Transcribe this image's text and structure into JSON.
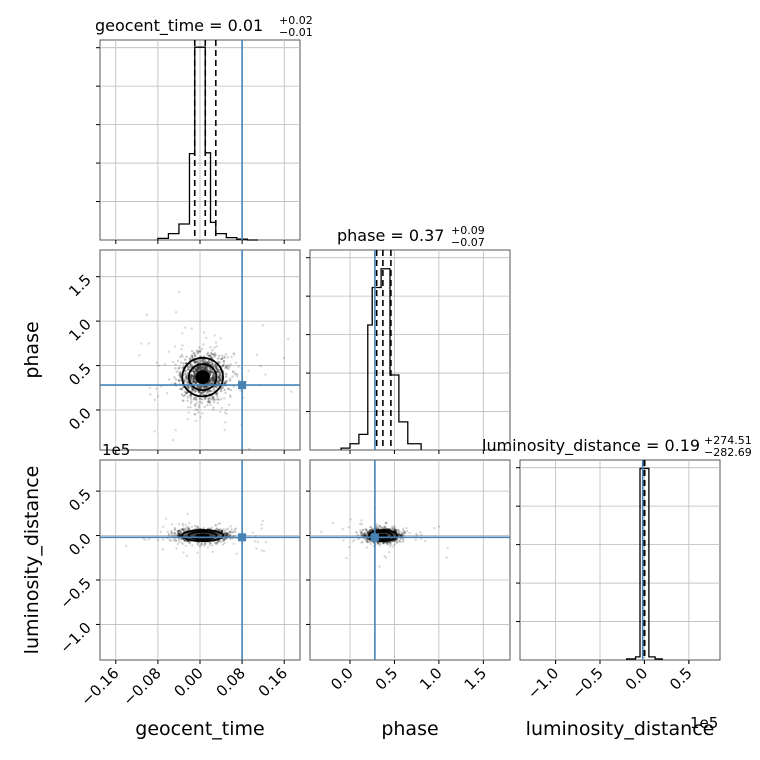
{
  "chart_data": {
    "type": "corner",
    "truths": {
      "geocent_time": 0.08,
      "phase": 0.28,
      "luminosity_distance": -0.02
    },
    "marker_color": "#4682b4",
    "scale_notes": {
      "distance_offset": "1e5"
    },
    "axes": [
      {
        "name": "geocent_time",
        "label": "geocent_time",
        "range": [
          -0.19,
          0.19
        ],
        "ticks": [
          -0.16,
          -0.08,
          0.0,
          0.08,
          0.16
        ],
        "tick_labels": [
          "−0.16",
          "−0.08",
          "0.00",
          "0.08",
          "0.16"
        ]
      },
      {
        "name": "phase",
        "label": "phase",
        "range": [
          -0.45,
          1.8
        ],
        "ticks": [
          0.0,
          0.5,
          1.0,
          1.5
        ],
        "tick_labels": [
          "0.0",
          "0.5",
          "1.0",
          "1.5"
        ]
      },
      {
        "name": "luminosity_distance",
        "label": "luminosity_distance",
        "range": [
          -1.4,
          0.85
        ],
        "ticks": [
          -1.0,
          -0.5,
          0.0,
          0.5
        ],
        "tick_labels": [
          "−1.0",
          "−0.5",
          "0.0",
          "0.5"
        ]
      }
    ],
    "diag": [
      {
        "title_main": "geocent_time = 0.01",
        "title_sup": "+0.02",
        "title_sub": "−0.01",
        "bins": [
          -0.08,
          -0.06,
          -0.04,
          -0.02,
          -0.01,
          0.0,
          0.01,
          0.02,
          0.03,
          0.05,
          0.07,
          0.09,
          0.11
        ],
        "counts": [
          2,
          8,
          20,
          108,
          241,
          241,
          109,
          22,
          8,
          3,
          1,
          0
        ],
        "ymax": 250,
        "quantiles": [
          -0.01,
          0.01,
          0.03
        ]
      },
      {
        "title_main": "phase = 0.37",
        "title_sup": "+0.09",
        "title_sub": "−0.07",
        "bins": [
          -0.1,
          0.0,
          0.1,
          0.2,
          0.25,
          0.35,
          0.45,
          0.55,
          0.65,
          0.8
        ],
        "counts": [
          3,
          10,
          25,
          200,
          260,
          290,
          120,
          45,
          10
        ],
        "ymax": 320,
        "quantiles": [
          0.3,
          0.37,
          0.46
        ]
      },
      {
        "title_main": "luminosity_distance = 0.19",
        "title_sup": "+274.51",
        "title_sub": "−282.69",
        "bins": [
          -0.2,
          -0.1,
          -0.05,
          0.05,
          0.12,
          0.2
        ],
        "counts": [
          1,
          3,
          182,
          3,
          1
        ],
        "ymax": 190,
        "quantiles": [
          -0.003,
          0.0,
          0.003
        ]
      }
    ],
    "offdiag": [
      {
        "x": "geocent_time",
        "y": "phase",
        "center": [
          0.005,
          0.37
        ],
        "spread": [
          0.025,
          0.14
        ]
      },
      {
        "x": "geocent_time",
        "y": "luminosity_distance",
        "center": [
          0.005,
          0.0
        ],
        "spread": [
          0.025,
          0.04
        ]
      },
      {
        "x": "phase",
        "y": "luminosity_distance",
        "center": [
          0.37,
          0.0
        ],
        "spread": [
          0.1,
          0.04
        ]
      }
    ]
  }
}
